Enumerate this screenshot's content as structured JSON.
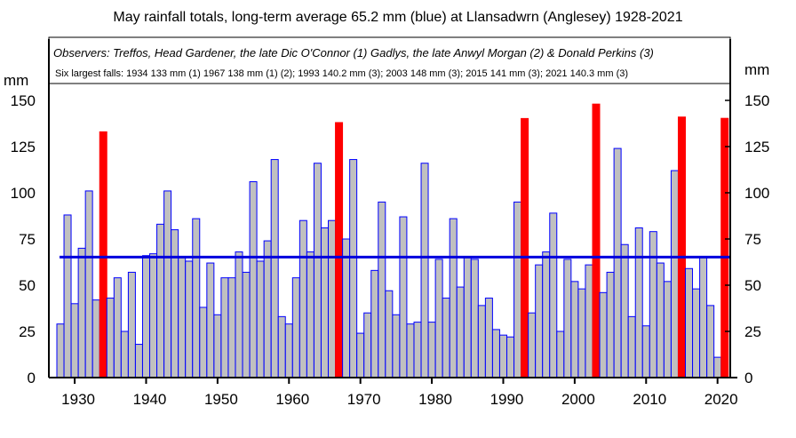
{
  "chart_data": {
    "type": "bar",
    "title": "May rainfall totals, long-term average 65.2 mm (blue)  at Llansadwrn (Anglesey) 1928-2021",
    "observers": "Observers: Treffos, Head Gardener, the late Dic O'Connor (1)  Gadlys, the late Anwyl Morgan (2)  & Donald Perkins (3)",
    "largest_falls": "Six largest falls: 1934 133 mm (1) 1967 138 mm (1) (2); 1993 140.2 mm (3); 2003 148 mm (3); 2015 141 mm (3); 2021 140.3 mm (3)",
    "ylabel_left": "mm",
    "ylabel_right": "mm",
    "ylim": [
      0,
      150
    ],
    "yticks": [
      0,
      25,
      50,
      75,
      100,
      125,
      150
    ],
    "xticks": [
      1930,
      1940,
      1950,
      1960,
      1970,
      1980,
      1990,
      2000,
      2010,
      2020
    ],
    "average": 65.2,
    "colors": {
      "bar_fill": "#c0c0c0",
      "bar_outline": "#0000ff",
      "highlight": "#ff0000",
      "average_line": "#0000dd"
    },
    "highlight_years": [
      1934,
      1967,
      1993,
      2003,
      2015,
      2021
    ],
    "x": [
      1928,
      1929,
      1930,
      1931,
      1932,
      1933,
      1934,
      1935,
      1936,
      1937,
      1938,
      1939,
      1940,
      1941,
      1942,
      1943,
      1944,
      1945,
      1946,
      1947,
      1948,
      1949,
      1950,
      1951,
      1952,
      1953,
      1954,
      1955,
      1956,
      1957,
      1958,
      1959,
      1960,
      1961,
      1962,
      1963,
      1964,
      1965,
      1966,
      1967,
      1968,
      1969,
      1970,
      1971,
      1972,
      1973,
      1974,
      1975,
      1976,
      1977,
      1978,
      1979,
      1980,
      1981,
      1982,
      1983,
      1984,
      1985,
      1986,
      1987,
      1988,
      1989,
      1990,
      1991,
      1992,
      1993,
      1994,
      1995,
      1996,
      1997,
      1998,
      1999,
      2000,
      2001,
      2002,
      2003,
      2004,
      2005,
      2006,
      2007,
      2008,
      2009,
      2010,
      2011,
      2012,
      2013,
      2014,
      2015,
      2016,
      2017,
      2018,
      2019,
      2020,
      2021
    ],
    "values": [
      29,
      88,
      40,
      70,
      101,
      42,
      133,
      43,
      54,
      25,
      57,
      18,
      66,
      67,
      83,
      101,
      80,
      65,
      63,
      86,
      38,
      62,
      34,
      54,
      54,
      68,
      57,
      106,
      63,
      74,
      118,
      33,
      29,
      54,
      85,
      68,
      116,
      81,
      85,
      138,
      75,
      118,
      24,
      35,
      58,
      95,
      47,
      34,
      87,
      29,
      30,
      116,
      30,
      64,
      43,
      86,
      49,
      65,
      64,
      39,
      43,
      26,
      23,
      22,
      95,
      140.2,
      35,
      61,
      68,
      89,
      25,
      64,
      52,
      48,
      61,
      148,
      46,
      57,
      124,
      72,
      33,
      81,
      28,
      79,
      62,
      52,
      112,
      141,
      59,
      48,
      65,
      39,
      11,
      140.3
    ]
  }
}
